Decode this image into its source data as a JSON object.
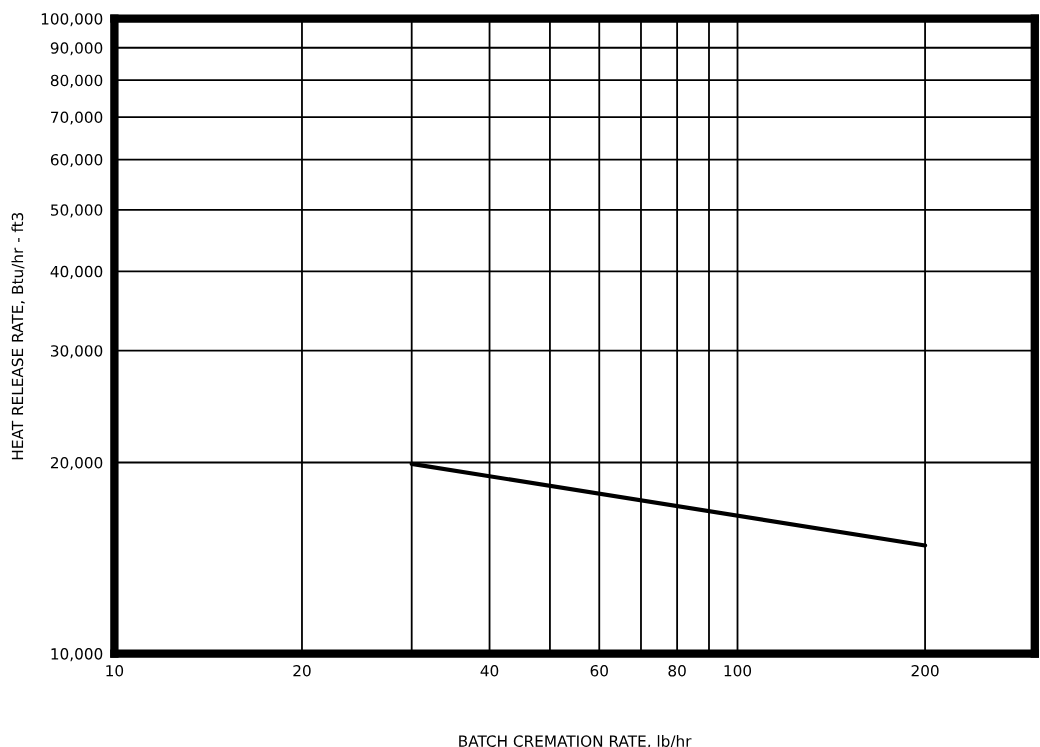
{
  "chart_data": {
    "type": "line",
    "xlabel": "BATCH CREMATION RATE, lb/hr",
    "ylabel": "HEAT RELEASE RATE, Btu/hr - ft3",
    "log": "xy",
    "grid": true,
    "marker": "none",
    "line_style": "solid",
    "xlim": [
      10,
      300
    ],
    "ylim": [
      10000,
      100000
    ],
    "xticks": [
      10,
      20,
      {
        "value": 30,
        "label": null
      },
      40,
      {
        "value": 50,
        "label": null
      },
      60,
      {
        "value": 70,
        "label": null
      },
      80,
      {
        "value": 90,
        "label": null
      },
      100,
      200
    ],
    "yticks": [
      {
        "value": 10000,
        "label": "10,000"
      },
      {
        "value": 20000,
        "label": "20,000"
      },
      {
        "value": 30000,
        "label": "30,000"
      },
      {
        "value": 40000,
        "label": "40,000"
      },
      {
        "value": 50000,
        "label": "50,000"
      },
      {
        "value": 60000,
        "label": "60,000"
      },
      {
        "value": 70000,
        "label": "70,000"
      },
      {
        "value": 80000,
        "label": "80,000"
      },
      {
        "value": 90000,
        "label": "90,000"
      },
      {
        "value": 100000,
        "label": "100,000"
      }
    ],
    "series": [
      {
        "color": "#000000",
        "x": [
          30,
          200
        ],
        "values": [
          19900,
          14800
        ]
      }
    ]
  }
}
